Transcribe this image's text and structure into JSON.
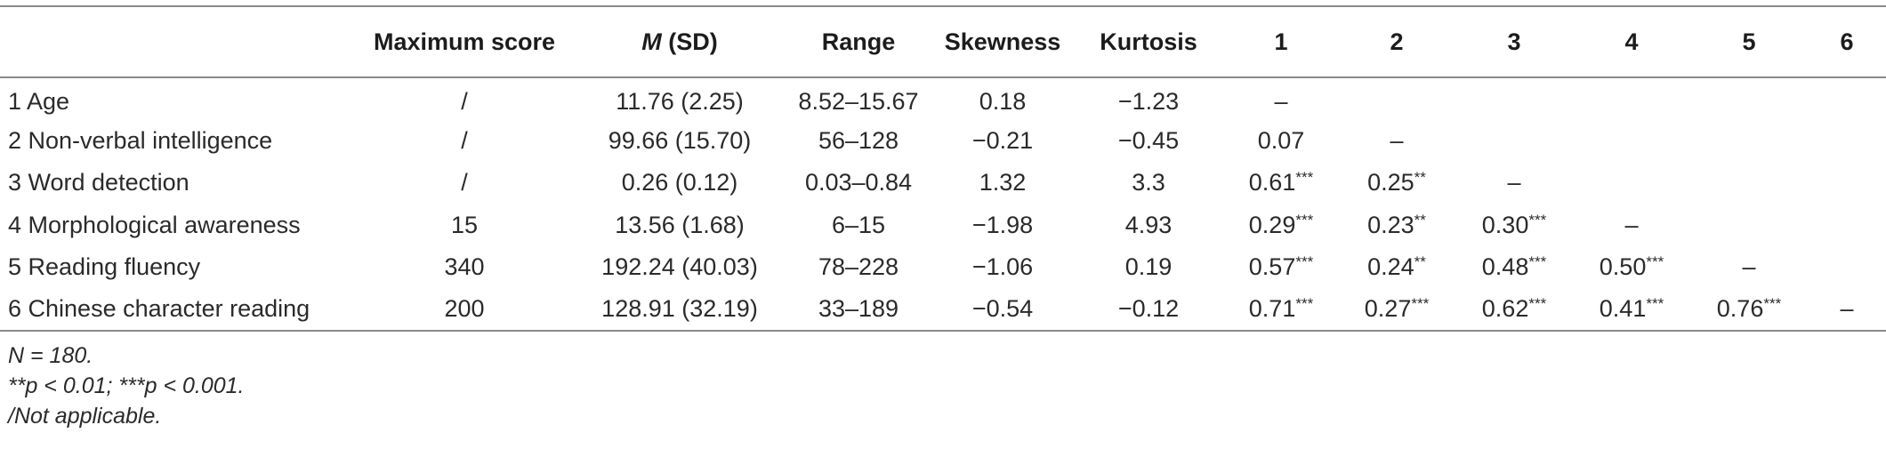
{
  "table": {
    "columns": [
      {
        "key": "variable",
        "label": ""
      },
      {
        "key": "max_score",
        "label": "Maximum score"
      },
      {
        "key": "mean_sd",
        "label_italic": "M",
        "label": " (SD)"
      },
      {
        "key": "range",
        "label": "Range"
      },
      {
        "key": "skewness",
        "label": "Skewness"
      },
      {
        "key": "kurtosis",
        "label": "Kurtosis"
      },
      {
        "key": "c1",
        "label": "1"
      },
      {
        "key": "c2",
        "label": "2"
      },
      {
        "key": "c3",
        "label": "3"
      },
      {
        "key": "c4",
        "label": "4"
      },
      {
        "key": "c5",
        "label": "5"
      },
      {
        "key": "c6",
        "label": "6"
      }
    ],
    "rows": [
      {
        "variable": "1 Age",
        "max_score": "/",
        "mean_sd": "11.76 (2.25)",
        "range": "8.52–15.67",
        "skewness": "0.18",
        "kurtosis": "−1.23",
        "c1": {
          "v": "–",
          "sig": ""
        },
        "c2": {
          "v": "",
          "sig": ""
        },
        "c3": {
          "v": "",
          "sig": ""
        },
        "c4": {
          "v": "",
          "sig": ""
        },
        "c5": {
          "v": "",
          "sig": ""
        },
        "c6": {
          "v": "",
          "sig": ""
        }
      },
      {
        "variable": "2 Non-verbal intelligence",
        "max_score": "/",
        "mean_sd": "99.66 (15.70)",
        "range": "56–128",
        "skewness": "−0.21",
        "kurtosis": "−0.45",
        "c1": {
          "v": "0.07",
          "sig": ""
        },
        "c2": {
          "v": "–",
          "sig": ""
        },
        "c3": {
          "v": "",
          "sig": ""
        },
        "c4": {
          "v": "",
          "sig": ""
        },
        "c5": {
          "v": "",
          "sig": ""
        },
        "c6": {
          "v": "",
          "sig": ""
        }
      },
      {
        "variable": "3 Word detection",
        "max_score": "/",
        "mean_sd": "0.26 (0.12)",
        "range": "0.03–0.84",
        "skewness": "1.32",
        "kurtosis": "3.3",
        "c1": {
          "v": "0.61",
          "sig": "***"
        },
        "c2": {
          "v": "0.25",
          "sig": "**"
        },
        "c3": {
          "v": "–",
          "sig": ""
        },
        "c4": {
          "v": "",
          "sig": ""
        },
        "c5": {
          "v": "",
          "sig": ""
        },
        "c6": {
          "v": "",
          "sig": ""
        }
      },
      {
        "variable": "4 Morphological awareness",
        "max_score": "15",
        "mean_sd": "13.56 (1.68)",
        "range": "6–15",
        "skewness": "−1.98",
        "kurtosis": "4.93",
        "c1": {
          "v": "0.29",
          "sig": "***"
        },
        "c2": {
          "v": "0.23",
          "sig": "**"
        },
        "c3": {
          "v": "0.30",
          "sig": "***"
        },
        "c4": {
          "v": "–",
          "sig": ""
        },
        "c5": {
          "v": "",
          "sig": ""
        },
        "c6": {
          "v": "",
          "sig": ""
        }
      },
      {
        "variable": "5 Reading fluency",
        "max_score": "340",
        "mean_sd": "192.24 (40.03)",
        "range": "78–228",
        "skewness": "−1.06",
        "kurtosis": "0.19",
        "c1": {
          "v": "0.57",
          "sig": "***"
        },
        "c2": {
          "v": "0.24",
          "sig": "**"
        },
        "c3": {
          "v": "0.48",
          "sig": "***"
        },
        "c4": {
          "v": "0.50",
          "sig": "***"
        },
        "c5": {
          "v": "–",
          "sig": ""
        },
        "c6": {
          "v": "",
          "sig": ""
        }
      },
      {
        "variable": "6 Chinese character reading",
        "max_score": "200",
        "mean_sd": "128.91 (32.19)",
        "range": "33–189",
        "skewness": "−0.54",
        "kurtosis": "−0.12",
        "c1": {
          "v": "0.71",
          "sig": "***"
        },
        "c2": {
          "v": "0.27",
          "sig": "***"
        },
        "c3": {
          "v": "0.62",
          "sig": "***"
        },
        "c4": {
          "v": "0.41",
          "sig": "***"
        },
        "c5": {
          "v": "0.76",
          "sig": "***"
        },
        "c6": {
          "v": "–",
          "sig": ""
        }
      }
    ]
  },
  "notes": [
    "N = 180.",
    "**p < 0.01; ***p < 0.001.",
    "/Not applicable."
  ]
}
